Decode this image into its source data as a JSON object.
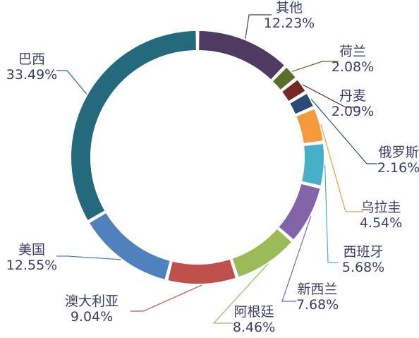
{
  "chart_data": {
    "type": "pie",
    "donut": true,
    "title": "",
    "legend": "none",
    "slices": [
      {
        "label": "其他",
        "percent_label": "12.23%",
        "value": 12.23,
        "color": "#4e3a63"
      },
      {
        "label": "荷兰",
        "percent_label": "2.08%",
        "value": 2.08,
        "color": "#5a6e2a"
      },
      {
        "label": "丹麦",
        "percent_label": "2.09%",
        "value": 2.09,
        "color": "#762828"
      },
      {
        "label": "俄罗斯",
        "percent_label": "2.16%",
        "value": 2.16,
        "color": "#2c4a78"
      },
      {
        "label": "乌拉圭",
        "percent_label": "4.54%",
        "value": 4.54,
        "color": "#f59a3c"
      },
      {
        "label": "西班牙",
        "percent_label": "5.68%",
        "value": 5.68,
        "color": "#48afc8"
      },
      {
        "label": "新西兰",
        "percent_label": "7.68%",
        "value": 7.68,
        "color": "#8264a8"
      },
      {
        "label": "阿根廷",
        "percent_label": "8.46%",
        "value": 8.46,
        "color": "#9bbb59"
      },
      {
        "label": "澳大利亚",
        "percent_label": "9.04%",
        "value": 9.04,
        "color": "#c0504d"
      },
      {
        "label": "美国",
        "percent_label": "12.55%",
        "value": 12.55,
        "color": "#4f81bd"
      },
      {
        "label": "巴西",
        "percent_label": "33.49%",
        "value": 33.49,
        "color": "#246a7c"
      }
    ]
  }
}
